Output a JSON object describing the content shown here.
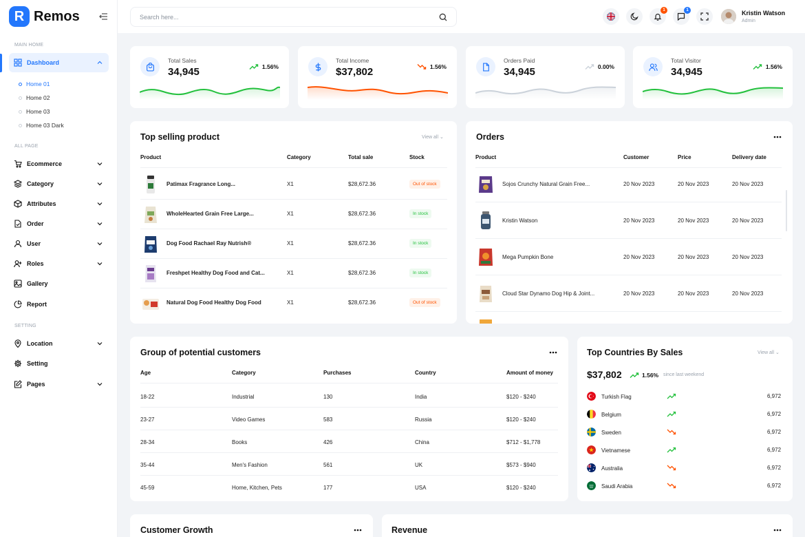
{
  "brand": {
    "logo_letter": "R",
    "name": "Remos"
  },
  "sidebar": {
    "sections": {
      "main": "Main home",
      "all": "All page",
      "setting": "Setting"
    },
    "dashboard": "Dashboard",
    "sub_items": [
      "Home 01",
      "Home 02",
      "Home 03",
      "Home 03 Dark"
    ],
    "items": [
      "Ecommerce",
      "Category",
      "Attributes",
      "Order",
      "User",
      "Roles",
      "Gallery",
      "Report"
    ],
    "setting_items": [
      "Location",
      "Setting",
      "Pages"
    ]
  },
  "header": {
    "search_placeholder": "Search here...",
    "notification_count": "1",
    "message_count": "1",
    "user_name": "Kristin Watson",
    "user_role": "Admin"
  },
  "stats": [
    {
      "label": "Total Sales",
      "value": "34,945",
      "change": "1.56%",
      "color": "#22c03c"
    },
    {
      "label": "Total Income",
      "value": "$37,802",
      "change": "1.56%",
      "color": "#ff5200"
    },
    {
      "label": "Orders Paid",
      "value": "34,945",
      "change": "0.00%",
      "color": "#cbd2da"
    },
    {
      "label": "Total Visitor",
      "value": "34,945",
      "change": "1.56%",
      "color": "#22c03c"
    }
  ],
  "top_selling": {
    "title": "Top selling product",
    "view_all": "View all",
    "headers": [
      "Product",
      "Category",
      "Total sale",
      "Stock"
    ],
    "rows": [
      {
        "product": "Patimax Fragrance Long...",
        "category": "X1",
        "sale": "$28,672.36",
        "stock": "Out of stock"
      },
      {
        "product": "WholeHearted Grain Free Large...",
        "category": "X1",
        "sale": "$28,672.36",
        "stock": "In stock"
      },
      {
        "product": "Dog Food Rachael Ray Nutrish®",
        "category": "X1",
        "sale": "$28,672.36",
        "stock": "In stock"
      },
      {
        "product": "Freshpet Healthy Dog Food and Cat...",
        "category": "X1",
        "sale": "$28,672.36",
        "stock": "In stock"
      },
      {
        "product": "Natural Dog Food Healthy Dog Food",
        "category": "X1",
        "sale": "$28,672.36",
        "stock": "Out of stock"
      }
    ]
  },
  "orders": {
    "title": "Orders",
    "headers": [
      "Product",
      "Customer",
      "Price",
      "Delivery date"
    ],
    "rows": [
      {
        "product": "Sojos Crunchy Natural Grain Free...",
        "customer": "20 Nov 2023",
        "price": "20 Nov 2023",
        "date": "20 Nov 2023"
      },
      {
        "product": "Kristin Watson",
        "customer": "20 Nov 2023",
        "price": "20 Nov 2023",
        "date": "20 Nov 2023"
      },
      {
        "product": "Mega Pumpkin Bone",
        "customer": "20 Nov 2023",
        "price": "20 Nov 2023",
        "date": "20 Nov 2023"
      },
      {
        "product": "Cloud Star Dynamo Dog Hip & Joint...",
        "customer": "20 Nov 2023",
        "price": "20 Nov 2023",
        "date": "20 Nov 2023"
      }
    ]
  },
  "customers": {
    "title": "Group of potential customers",
    "headers": [
      "Age",
      "Category",
      "Purchases",
      "Country",
      "Amount of money"
    ],
    "rows": [
      {
        "age": "18-22",
        "category": "Industrial",
        "purchases": "130",
        "country": "India",
        "amount": "$120 - $240"
      },
      {
        "age": "23-27",
        "category": "Video Games",
        "purchases": "583",
        "country": "Russia",
        "amount": "$120 - $240"
      },
      {
        "age": "28-34",
        "category": "Books",
        "purchases": "426",
        "country": "China",
        "amount": "$712 - $1,778"
      },
      {
        "age": "35-44",
        "category": "Men's Fashion",
        "purchases": "561",
        "country": "UK",
        "amount": "$573 - $940"
      },
      {
        "age": "45-59",
        "category": "Home, Kitchen, Pets",
        "purchases": "177",
        "country": "USA",
        "amount": "$120 - $240"
      }
    ]
  },
  "countries": {
    "title": "Top Countries By Sales",
    "view_all": "View all",
    "total": "$37,802",
    "change": "1.56%",
    "since": "since last weekend",
    "rows": [
      {
        "name": "Turkish Flag",
        "value": "6,972",
        "trend": "up"
      },
      {
        "name": "Belgium",
        "value": "6,972",
        "trend": "up"
      },
      {
        "name": "Sweden",
        "value": "6,972",
        "trend": "down"
      },
      {
        "name": "Vietnamese",
        "value": "6,972",
        "trend": "up"
      },
      {
        "name": "Australia",
        "value": "6,972",
        "trend": "down"
      },
      {
        "name": "Saudi Arabia",
        "value": "6,972",
        "trend": "down"
      }
    ]
  },
  "bottom": {
    "growth_title": "Customer Growth",
    "revenue_title": "Revenue"
  }
}
